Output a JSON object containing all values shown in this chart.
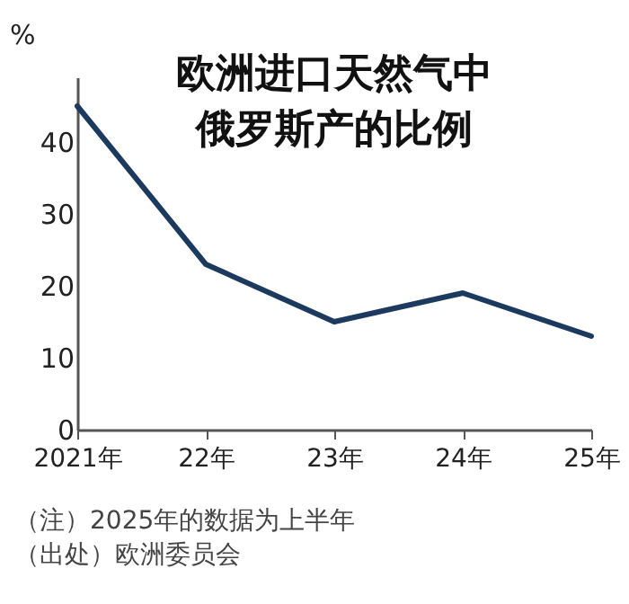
{
  "chart_data": {
    "type": "line",
    "title": "欧洲进口天然气中俄罗斯产的比例",
    "ylabel": "%",
    "categories": [
      "2021年",
      "22年",
      "23年",
      "24年",
      "25年"
    ],
    "series": [
      {
        "color": "#1c3a5e",
        "values": [
          45,
          23,
          15,
          19,
          13
        ]
      }
    ],
    "ylim": [
      0,
      49
    ],
    "yticks": [
      0,
      10,
      20,
      30,
      40
    ],
    "grid": false,
    "legend": false,
    "marker": "none",
    "line_style": "solid",
    "annotations": [
      "（注）2025年的数据为上半年",
      "（出处）欧洲委员会"
    ]
  }
}
